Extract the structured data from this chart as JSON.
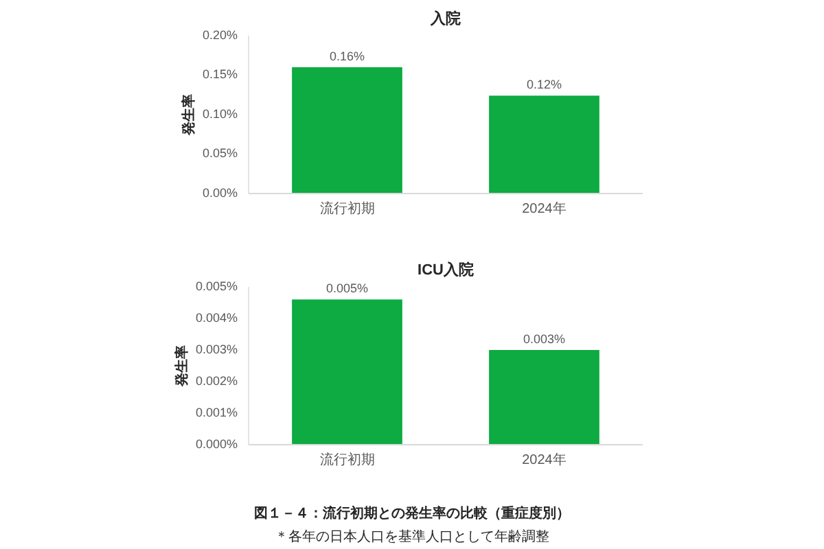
{
  "chart_data": [
    {
      "type": "bar",
      "title": "入院",
      "ylabel": "発生率",
      "categories": [
        "流行初期",
        "2024年"
      ],
      "values": [
        0.16,
        0.124
      ],
      "value_labels": [
        "0.16%",
        "0.12%"
      ],
      "color": "#0dab41",
      "ylim": [
        0,
        0.2
      ],
      "yticks": [
        {
          "value": 0,
          "label": "0.00%"
        },
        {
          "value": 0.05,
          "label": "0.05%"
        },
        {
          "value": 0.1,
          "label": "0.10%"
        },
        {
          "value": 0.15,
          "label": "0.15%"
        },
        {
          "value": 0.2,
          "label": "0.20%"
        }
      ]
    },
    {
      "type": "bar",
      "title": "ICU入院",
      "ylabel": "発生率",
      "categories": [
        "流行初期",
        "2024年"
      ],
      "values": [
        0.0046,
        0.003
      ],
      "value_labels": [
        "0.005%",
        "0.003%"
      ],
      "color": "#0dab41",
      "ylim": [
        0,
        0.005
      ],
      "yticks": [
        {
          "value": 0,
          "label": "0.000%"
        },
        {
          "value": 0.001,
          "label": "0.001%"
        },
        {
          "value": 0.002,
          "label": "0.002%"
        },
        {
          "value": 0.003,
          "label": "0.003%"
        },
        {
          "value": 0.004,
          "label": "0.004%"
        },
        {
          "value": 0.005,
          "label": "0.005%"
        }
      ],
      "annotations": [
        "図１－４：流行初期との発生率の比較（重症度別）",
        "＊各年の日本人口を基準人口として年齢調整"
      ]
    }
  ]
}
